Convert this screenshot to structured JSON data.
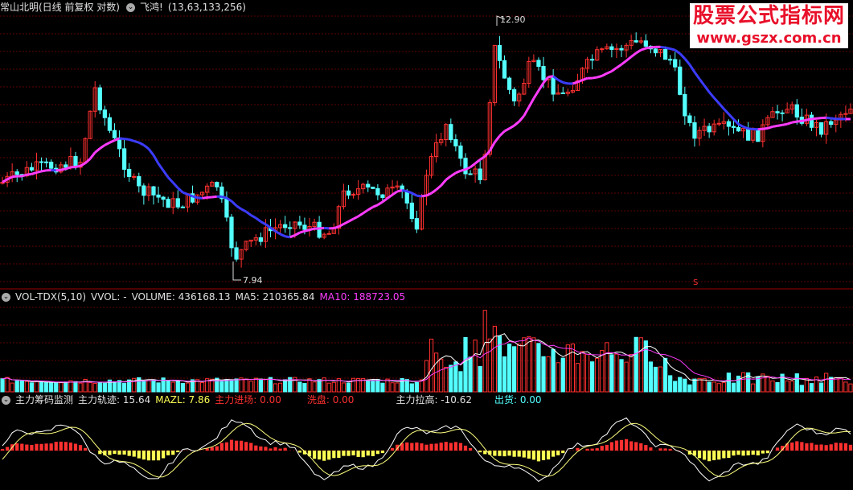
{
  "main": {
    "title": "常山北明(日线 前复权 对数)",
    "indicator_name": "飞鸿!",
    "indicator_params": "(13,63,133,256)",
    "high_label": "12.90",
    "low_label": "7.94",
    "marker": "S"
  },
  "watermark": {
    "line1": "股票公式指标网",
    "line2": "www.gszx.com.cn"
  },
  "volume": {
    "name": "VOL-TDX(5,10)",
    "vvol": "VVOL: -",
    "volume": "VOLUME: 436168.13",
    "ma5": "MA5: 210365.84",
    "ma10": "MA10: 188723.05"
  },
  "sub": {
    "name": "主力筹码监测",
    "track": "主力轨迹: 15.64",
    "mazl": "MAZL: 7.86",
    "enter": "主力进场: 0.00",
    "wash": "洗盘: 0.00",
    "pull": "主力拉高: -10.62",
    "out": "出货: 0.00"
  },
  "colors": {
    "up": "#ff3030",
    "down": "#54ffff",
    "ma_up": "#ff3cff",
    "ma_down": "#3c3cff",
    "grid": "#7a0000",
    "vol_ma5": "#ffffff",
    "vol_ma10": "#ff3cff",
    "yellow": "#ffff54"
  },
  "chart_data": {
    "type": "candlestick",
    "price_range": [
      7.94,
      12.9
    ],
    "bars": 175,
    "series": [
      {
        "name": "VOLUME",
        "values": [
          436168.13
        ]
      },
      {
        "name": "MA5",
        "values": [
          210365.84
        ]
      },
      {
        "name": "MA10",
        "values": [
          188723.05
        ]
      },
      {
        "name": "主力轨迹",
        "values": [
          15.64
        ]
      },
      {
        "name": "MAZL",
        "values": [
          7.86
        ]
      }
    ]
  }
}
